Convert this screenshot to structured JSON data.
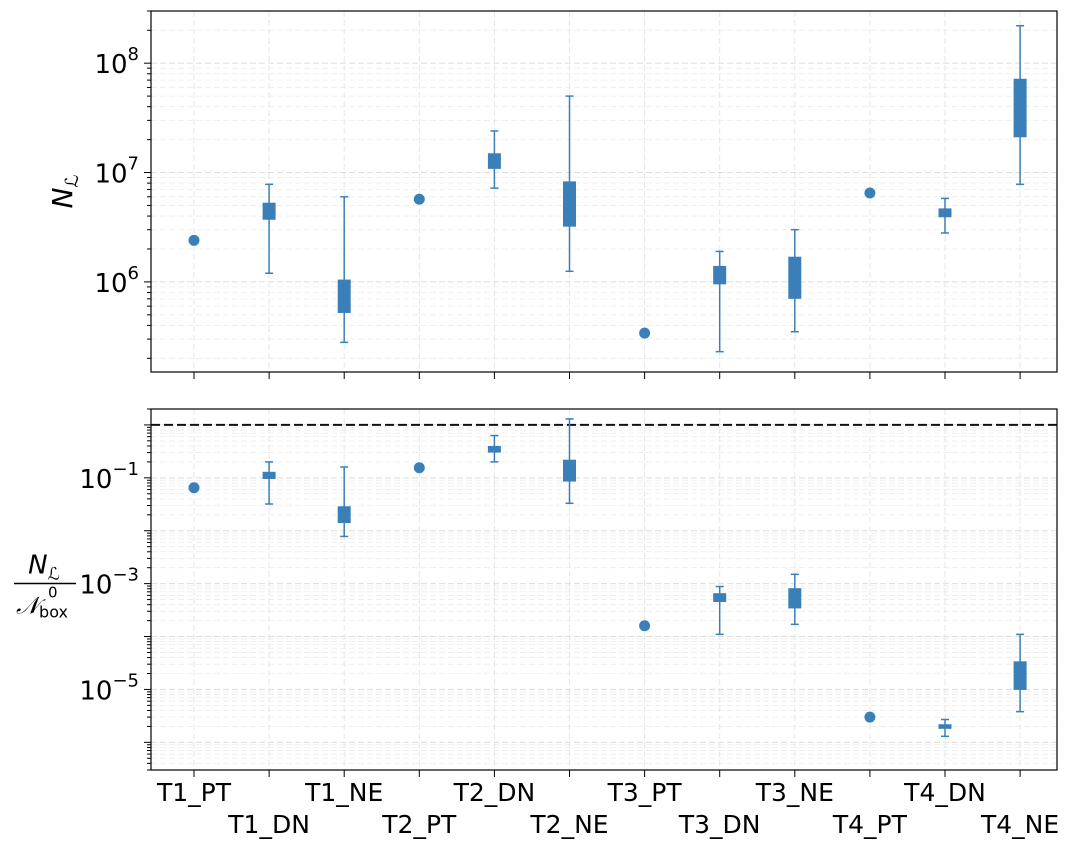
{
  "chart_data": {
    "type": "box",
    "categories": [
      "T1_PT",
      "T1_DN",
      "T1_NE",
      "T2_PT",
      "T2_DN",
      "T2_NE",
      "T3_PT",
      "T3_DN",
      "T3_NE",
      "T4_PT",
      "T4_DN",
      "T4_NE"
    ],
    "series_color": "#3b7fb9",
    "panels": [
      {
        "id": "top",
        "ylabel_main": "N",
        "ylabel_sub": "ℒ",
        "yscale": "log",
        "ylim": [
          150000,
          300000000
        ],
        "yticks": [
          {
            "value": 1000000,
            "base": "10",
            "exp": "6"
          },
          {
            "value": 10000000,
            "base": "10",
            "exp": "7"
          },
          {
            "value": 100000000,
            "base": "10",
            "exp": "8"
          }
        ],
        "grid": true,
        "reference_line": null,
        "items": [
          {
            "category": "T1_PT",
            "kind": "point",
            "value": 2400000
          },
          {
            "category": "T1_DN",
            "kind": "box",
            "whisker_low": 1200000,
            "q1": 3700000,
            "q3": 5300000,
            "whisker_high": 7800000
          },
          {
            "category": "T1_NE",
            "kind": "box",
            "whisker_low": 280000,
            "q1": 520000,
            "q3": 1050000,
            "whisker_high": 6000000
          },
          {
            "category": "T2_PT",
            "kind": "point",
            "value": 5700000
          },
          {
            "category": "T2_DN",
            "kind": "box",
            "whisker_low": 7200000,
            "q1": 10800000,
            "q3": 15000000,
            "whisker_high": 24000000
          },
          {
            "category": "T2_NE",
            "kind": "box",
            "whisker_low": 1250000,
            "q1": 3200000,
            "q3": 8300000,
            "whisker_high": 50000000
          },
          {
            "category": "T3_PT",
            "kind": "point",
            "value": 340000
          },
          {
            "category": "T3_DN",
            "kind": "box",
            "whisker_low": 230000,
            "q1": 950000,
            "q3": 1400000,
            "whisker_high": 1900000
          },
          {
            "category": "T3_NE",
            "kind": "box",
            "whisker_low": 350000,
            "q1": 700000,
            "q3": 1700000,
            "whisker_high": 3000000
          },
          {
            "category": "T4_PT",
            "kind": "point",
            "value": 6500000
          },
          {
            "category": "T4_DN",
            "kind": "box",
            "whisker_low": 2800000,
            "q1": 3900000,
            "q3": 4700000,
            "whisker_high": 5800000
          },
          {
            "category": "T4_NE",
            "kind": "box",
            "whisker_low": 7800000,
            "q1": 21000000,
            "q3": 72000000,
            "whisker_high": 220000000
          }
        ]
      },
      {
        "id": "bottom",
        "ylabel_num_main": "N",
        "ylabel_num_sub": "ℒ",
        "ylabel_den_main": "𝒩",
        "ylabel_den_sub": "box",
        "ylabel_den_sup": "0",
        "yscale": "log",
        "ylim": [
          3e-07,
          2.0
        ],
        "yticks": [
          {
            "value": 0.1,
            "base": "10",
            "exp": "−1"
          },
          {
            "value": 0.001,
            "base": "10",
            "exp": "−3"
          },
          {
            "value": 1e-05,
            "base": "10",
            "exp": "−5"
          }
        ],
        "grid": true,
        "reference_line": 1.0,
        "items": [
          {
            "category": "T1_PT",
            "kind": "point",
            "value": 0.065
          },
          {
            "category": "T1_DN",
            "kind": "box",
            "whisker_low": 0.032,
            "q1": 0.095,
            "q3": 0.13,
            "whisker_high": 0.2
          },
          {
            "category": "T1_NE",
            "kind": "box",
            "whisker_low": 0.0078,
            "q1": 0.014,
            "q3": 0.029,
            "whisker_high": 0.16
          },
          {
            "category": "T2_PT",
            "kind": "point",
            "value": 0.155
          },
          {
            "category": "T2_DN",
            "kind": "box",
            "whisker_low": 0.2,
            "q1": 0.3,
            "q3": 0.4,
            "whisker_high": 0.63
          },
          {
            "category": "T2_NE",
            "kind": "box",
            "whisker_low": 0.033,
            "q1": 0.085,
            "q3": 0.22,
            "whisker_high": 1.3
          },
          {
            "category": "T3_PT",
            "kind": "point",
            "value": 0.00016
          },
          {
            "category": "T3_DN",
            "kind": "box",
            "whisker_low": 0.00011,
            "q1": 0.00045,
            "q3": 0.00066,
            "whisker_high": 0.00088
          },
          {
            "category": "T3_NE",
            "kind": "box",
            "whisker_low": 0.00017,
            "q1": 0.00034,
            "q3": 0.00082,
            "whisker_high": 0.0015
          },
          {
            "category": "T4_PT",
            "kind": "point",
            "value": 3e-06
          },
          {
            "category": "T4_DN",
            "kind": "box",
            "whisker_low": 1.3e-06,
            "q1": 1.8e-06,
            "q3": 2.2e-06,
            "whisker_high": 2.7e-06
          },
          {
            "category": "T4_NE",
            "kind": "box",
            "whisker_low": 3.8e-06,
            "q1": 9.8e-06,
            "q3": 3.4e-05,
            "whisker_high": 0.00011
          }
        ]
      }
    ]
  }
}
